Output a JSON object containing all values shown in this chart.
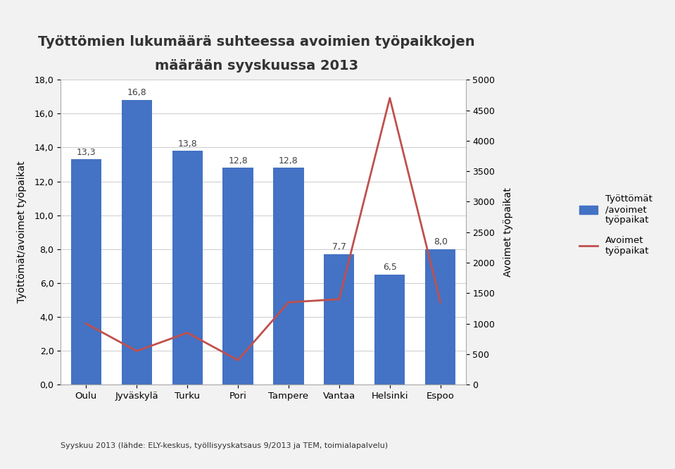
{
  "title_line1": "Työttömien lukumäärä suhteessa avoimien työpaikkojen",
  "title_line2": "määrään syyskuussa 2013",
  "categories": [
    "Oulu",
    "Jyväskylä",
    "Turku",
    "Pori",
    "Tampere",
    "Vantaa",
    "Helsinki",
    "Espoo"
  ],
  "bar_values": [
    13.3,
    16.8,
    13.8,
    12.8,
    12.8,
    7.7,
    6.5,
    8.0
  ],
  "line_values": [
    1000,
    550,
    850,
    400,
    1350,
    1400,
    4700,
    1350
  ],
  "bar_color": "#4472C4",
  "line_color": "#C0504D",
  "ylabel_left": "Työttömät/avoimet työpaikat",
  "ylabel_right": "Avoimet työpaikat",
  "ylim_left": [
    0,
    18
  ],
  "ylim_right": [
    0,
    5000
  ],
  "yticks_left": [
    0.0,
    2.0,
    4.0,
    6.0,
    8.0,
    10.0,
    12.0,
    14.0,
    16.0,
    18.0
  ],
  "ytick_labels_left": [
    "0,0",
    "2,0",
    "4,0",
    "6,0",
    "8,0",
    "10,0",
    "12,0",
    "14,0",
    "16,0",
    "18,0"
  ],
  "yticks_right": [
    0,
    500,
    1000,
    1500,
    2000,
    2500,
    3000,
    3500,
    4000,
    4500,
    5000
  ],
  "legend_bar_label": "Työttömät\n/avoimet\ntyöpaikat",
  "legend_line_label": "Avoimet\ntyöpaikat",
  "footnote": "Syyskuu 2013 (lähde: ELY-keskus, työllisyyskatsaus 9/2013 ja TEM, toimialapalvelu)",
  "background_color": "#FFFFFF",
  "figure_background": "#F2F2F2"
}
